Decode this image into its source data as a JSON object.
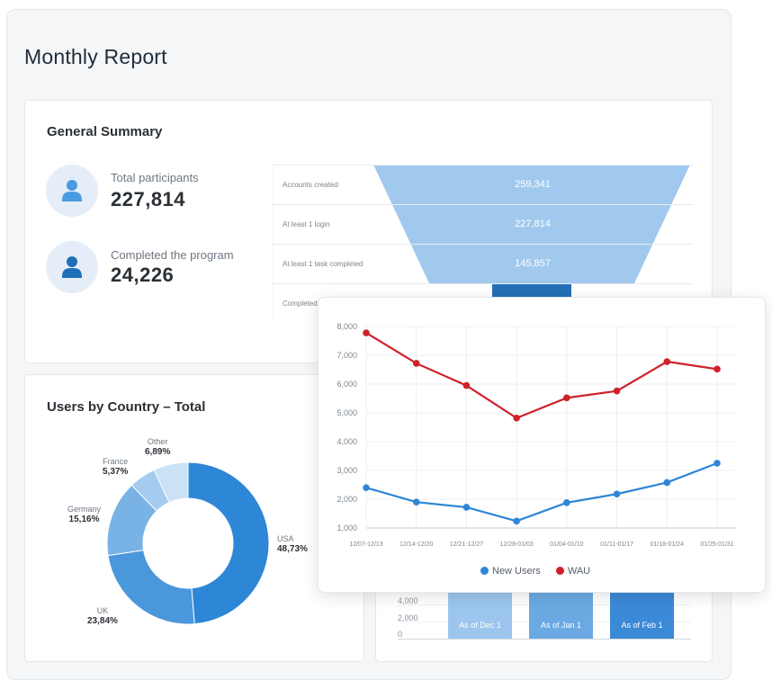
{
  "page": {
    "title": "Monthly Report"
  },
  "summary": {
    "title": "General Summary",
    "stats": [
      {
        "label": "Total participants",
        "value": "227,814",
        "icon": "person-icon"
      },
      {
        "label": "Completed the program",
        "value": "24,226",
        "icon": "person-icon"
      }
    ],
    "funnel": [
      {
        "label": "Accounts created",
        "value": "259,341"
      },
      {
        "label": "At least 1 login",
        "value": "227,814"
      },
      {
        "label": "At least 1 task completed",
        "value": "145,857"
      },
      {
        "label": "Completed",
        "value": ""
      }
    ]
  },
  "country": {
    "title": "Users by Country – Total",
    "slices": [
      {
        "name": "USA",
        "pct": "48,73%",
        "value": 48.73,
        "color": "#2e86d6"
      },
      {
        "name": "UK",
        "pct": "23,84%",
        "value": 23.84,
        "color": "#4b97dc"
      },
      {
        "name": "Germany",
        "pct": "15,16%",
        "value": 15.16,
        "color": "#79b3e6"
      },
      {
        "name": "France",
        "pct": "5,37%",
        "value": 5.37,
        "color": "#a5cbef"
      },
      {
        "name": "Other",
        "pct": "6,89%",
        "value": 6.89,
        "color": "#cbe1f5"
      }
    ]
  },
  "bars": {
    "yticks": [
      "4,000",
      "2,000",
      "0"
    ],
    "labels": [
      "As of Dec 1",
      "As of Jan 1",
      "As of Feb 1"
    ]
  },
  "chart_data": {
    "type": "line",
    "x": [
      "12/07-12/13",
      "12/14-12/20",
      "12/21-12/27",
      "12/28-01/03",
      "01/04-01/10",
      "01/11-01/17",
      "01/18-01/24",
      "01/25-01/31"
    ],
    "series": [
      {
        "name": "New Users",
        "color": "#2e86d6",
        "values": [
          2400,
          1900,
          1720,
          1240,
          1880,
          2180,
          2580,
          3250
        ]
      },
      {
        "name": "WAU",
        "color": "#d0212a",
        "values": [
          7780,
          6720,
          5950,
          4820,
          5520,
          5760,
          6780,
          6520
        ]
      }
    ],
    "yticks": [
      "8,000",
      "7,000",
      "6,000",
      "5,000",
      "4,000",
      "3,000",
      "2,000",
      "1,000"
    ],
    "ylim": [
      1000,
      8000
    ],
    "grid": true,
    "legend": "bottom"
  }
}
